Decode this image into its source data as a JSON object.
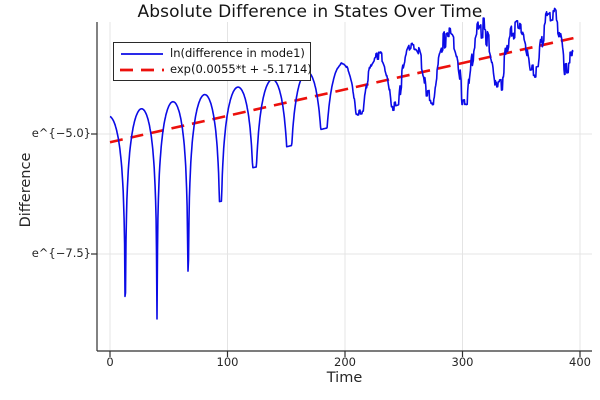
{
  "chart_data": {
    "type": "line",
    "title": "Absolute Difference in States Over Time",
    "xlabel": "Time",
    "ylabel": "Difference",
    "x_axis": {
      "tick_values": [
        0,
        100,
        200,
        300,
        400
      ],
      "tick_labels": [
        "0",
        "100",
        "200",
        "300",
        "400"
      ],
      "range": [
        -11,
        410
      ]
    },
    "y_axis": {
      "scale": "log",
      "tick_values": [
        -5.0,
        -7.5
      ],
      "tick_labels": [
        "e^{−5.0}",
        "e^{−7.5}"
      ],
      "range_ln": [
        -9.5,
        -2.65
      ]
    },
    "grid": {
      "visible": true,
      "color": "#e4e4e4"
    },
    "legend_position": "top-left",
    "series": [
      {
        "name": "ln(difference in mode1)",
        "color": "#0b0be6",
        "style": "solid",
        "width": 1.6
      },
      {
        "name": "exp(0.0055*t + -5.1714)",
        "color": "#ec100c",
        "style": "dashed",
        "width": 2.6
      }
    ],
    "fit": {
      "slope": 0.0055,
      "intercept": -5.1714,
      "t_start": 0,
      "t_end": 397
    },
    "blue_model": {
      "comment_free": true,
      "peak_offset": 0.55,
      "t_start": 0,
      "t_end": 394,
      "sample_step": 0.4,
      "dip_times": [
        -16,
        13,
        40,
        66.5,
        94,
        123,
        152.5,
        182,
        212.5,
        242.5,
        272.5,
        302,
        331.5,
        361,
        390,
        419
      ],
      "dip_depths": [
        4.3,
        4.3,
        3.9,
        3.05,
        1.75,
        1.2,
        0.92,
        0.72,
        0.55,
        0.6,
        0.5,
        0.78,
        0.5,
        0.45,
        0.52,
        0.5
      ],
      "noise": {
        "start": 188,
        "ramp": 112,
        "max": 0.34
      }
    },
    "axis_color": "#2f2f2f",
    "tick_length": 6
  }
}
